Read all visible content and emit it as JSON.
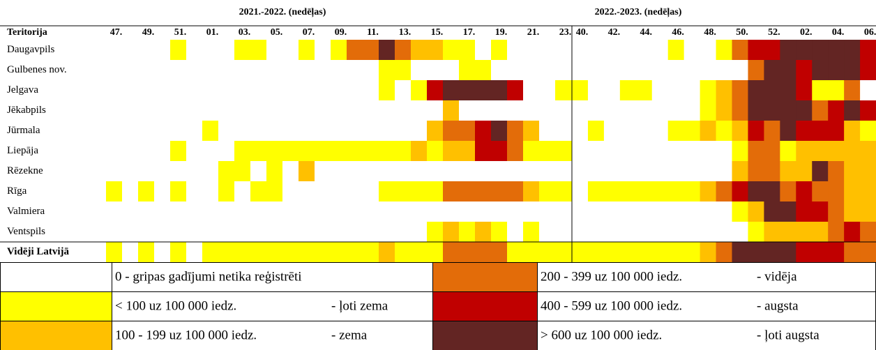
{
  "chart_data": {
    "type": "heatmap",
    "row_header": "Teritorija",
    "groups": [
      {
        "label": "2021.-2022. (nedēļas)",
        "columns": [
          "47.",
          null,
          "49.",
          null,
          "51.",
          null,
          "01.",
          null,
          "03.",
          null,
          "05.",
          null,
          "07.",
          null,
          "09.",
          null,
          "11.",
          null,
          "13.",
          null,
          "15.",
          null,
          "17.",
          null,
          "19.",
          null,
          "21.",
          null,
          "23."
        ]
      },
      {
        "label": "2022.-2023. (nedēļas)",
        "columns": [
          "40.",
          null,
          "42.",
          null,
          "44.",
          null,
          "46.",
          null,
          "48.",
          null,
          "50.",
          null,
          "52.",
          null,
          "02.",
          null,
          "04.",
          null,
          "06."
        ]
      }
    ],
    "rows": [
      {
        "name": "Daugavpils",
        "values": [
          0,
          0,
          0,
          0,
          1,
          0,
          0,
          0,
          1,
          1,
          0,
          0,
          1,
          0,
          1,
          3,
          3,
          5,
          3,
          2,
          2,
          1,
          1,
          0,
          1,
          0,
          0,
          0,
          0,
          0,
          0,
          0,
          0,
          0,
          0,
          1,
          0,
          0,
          1,
          3,
          4,
          4,
          5,
          5,
          5,
          5,
          5,
          4
        ]
      },
      {
        "name": "Gulbenes nov.",
        "values": [
          0,
          0,
          0,
          0,
          0,
          0,
          0,
          0,
          0,
          0,
          0,
          0,
          0,
          0,
          0,
          0,
          0,
          1,
          1,
          0,
          0,
          0,
          1,
          1,
          0,
          0,
          0,
          0,
          0,
          0,
          0,
          0,
          0,
          0,
          0,
          0,
          0,
          0,
          0,
          0,
          3,
          5,
          5,
          4,
          5,
          5,
          5,
          4
        ]
      },
      {
        "name": "Jelgava",
        "values": [
          0,
          0,
          0,
          0,
          0,
          0,
          0,
          0,
          0,
          0,
          0,
          0,
          0,
          0,
          0,
          0,
          0,
          1,
          0,
          1,
          4,
          5,
          5,
          5,
          5,
          4,
          0,
          0,
          1,
          1,
          0,
          0,
          1,
          1,
          0,
          0,
          0,
          1,
          2,
          3,
          5,
          5,
          5,
          4,
          1,
          1,
          3,
          0
        ]
      },
      {
        "name": "Jēkabpils",
        "values": [
          0,
          0,
          0,
          0,
          0,
          0,
          0,
          0,
          0,
          0,
          0,
          0,
          0,
          0,
          0,
          0,
          0,
          0,
          0,
          0,
          0,
          2,
          0,
          0,
          0,
          0,
          0,
          0,
          0,
          0,
          0,
          0,
          0,
          0,
          0,
          0,
          0,
          1,
          2,
          3,
          5,
          5,
          5,
          5,
          3,
          4,
          5,
          4
        ]
      },
      {
        "name": "Jūrmala",
        "values": [
          0,
          0,
          0,
          0,
          0,
          0,
          1,
          0,
          0,
          0,
          0,
          0,
          0,
          0,
          0,
          0,
          0,
          0,
          0,
          0,
          2,
          3,
          3,
          4,
          5,
          3,
          2,
          0,
          0,
          0,
          1,
          0,
          0,
          0,
          0,
          1,
          1,
          2,
          1,
          2,
          4,
          3,
          5,
          4,
          4,
          4,
          2,
          1
        ]
      },
      {
        "name": "Liepāja",
        "values": [
          0,
          0,
          0,
          0,
          1,
          0,
          0,
          0,
          1,
          1,
          1,
          1,
          1,
          1,
          1,
          1,
          1,
          1,
          1,
          2,
          1,
          2,
          2,
          4,
          4,
          3,
          1,
          1,
          1,
          0,
          0,
          0,
          0,
          0,
          0,
          0,
          0,
          0,
          0,
          1,
          3,
          3,
          1,
          2,
          2,
          2,
          2,
          2
        ]
      },
      {
        "name": "Rēzekne",
        "values": [
          0,
          0,
          0,
          0,
          0,
          0,
          0,
          1,
          1,
          0,
          1,
          0,
          2,
          0,
          0,
          0,
          0,
          0,
          0,
          0,
          0,
          0,
          0,
          0,
          0,
          0,
          0,
          0,
          0,
          0,
          0,
          0,
          0,
          0,
          0,
          0,
          0,
          0,
          0,
          2,
          3,
          3,
          2,
          2,
          5,
          3,
          2,
          2
        ]
      },
      {
        "name": "Rīga",
        "values": [
          1,
          0,
          1,
          0,
          1,
          0,
          0,
          1,
          0,
          1,
          1,
          0,
          0,
          0,
          0,
          0,
          0,
          1,
          1,
          1,
          1,
          3,
          3,
          3,
          3,
          3,
          2,
          1,
          1,
          0,
          1,
          1,
          1,
          1,
          1,
          1,
          1,
          2,
          3,
          4,
          5,
          5,
          3,
          4,
          3,
          3,
          2,
          2
        ]
      },
      {
        "name": "Valmiera",
        "values": [
          0,
          0,
          0,
          0,
          0,
          0,
          0,
          0,
          0,
          0,
          0,
          0,
          0,
          0,
          0,
          0,
          0,
          0,
          0,
          0,
          0,
          0,
          0,
          0,
          0,
          0,
          0,
          0,
          0,
          0,
          0,
          0,
          0,
          0,
          0,
          0,
          0,
          0,
          0,
          1,
          2,
          5,
          5,
          4,
          4,
          3,
          2,
          2
        ]
      },
      {
        "name": "Ventspils",
        "values": [
          0,
          0,
          0,
          0,
          0,
          0,
          0,
          0,
          0,
          0,
          0,
          0,
          0,
          0,
          0,
          0,
          0,
          0,
          0,
          0,
          1,
          2,
          1,
          2,
          1,
          0,
          1,
          0,
          0,
          0,
          0,
          0,
          0,
          0,
          0,
          0,
          0,
          0,
          0,
          0,
          1,
          2,
          2,
          2,
          2,
          3,
          4,
          3
        ]
      },
      {
        "name": "Vidēji Latvijā",
        "values": [
          1,
          0,
          1,
          0,
          1,
          0,
          1,
          1,
          1,
          1,
          1,
          1,
          1,
          1,
          1,
          1,
          1,
          2,
          1,
          1,
          1,
          3,
          3,
          3,
          3,
          1,
          1,
          1,
          1,
          1,
          1,
          1,
          1,
          1,
          1,
          1,
          1,
          2,
          3,
          5,
          5,
          5,
          5,
          4,
          4,
          4,
          3,
          3
        ]
      }
    ],
    "levels": [
      {
        "range": "0 - gripas gadījumi netika reģistrēti",
        "color": "#ffffff"
      },
      {
        "range": "< 100 uz 100 000 iedz.",
        "level": "- ļoti zema",
        "color": "#ffff00"
      },
      {
        "range": "100 - 199 uz 100 000 iedz.",
        "level": "- zema",
        "color": "#ffc000"
      },
      {
        "range": "200 - 399 uz 100 000 iedz.",
        "level": "- vidēja",
        "color": "#e36c09"
      },
      {
        "range": "400 - 599 uz 100 000 iedz.",
        "level": "- augsta",
        "color": "#c00000"
      },
      {
        "range": "> 600 uz 100 000 iedz.",
        "level": "- ļoti augsta",
        "color": "#632523"
      }
    ]
  }
}
